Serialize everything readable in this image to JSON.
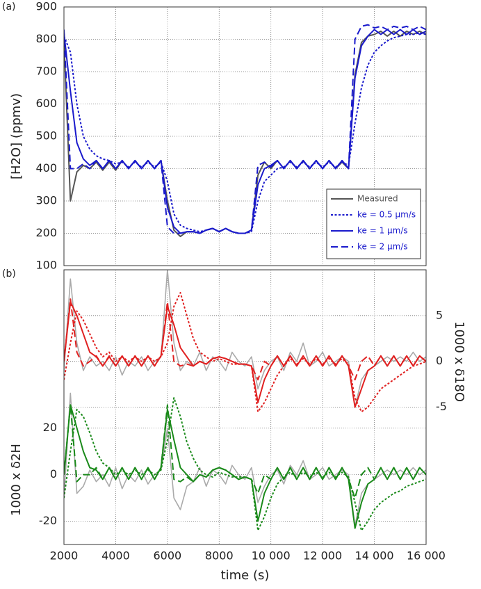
{
  "chart_data": [
    {
      "type": "line",
      "panel_label": "(a)",
      "y_label": "[H2O]  (ppmv)",
      "x": [
        2000,
        2250,
        2500,
        2750,
        3000,
        3250,
        3500,
        3750,
        4000,
        4250,
        4500,
        4750,
        5000,
        5250,
        5500,
        5750,
        6000,
        6250,
        6500,
        6750,
        7000,
        7250,
        7500,
        7750,
        8000,
        8250,
        8500,
        8750,
        9000,
        9250,
        9500,
        9750,
        10000,
        10250,
        10500,
        10750,
        11000,
        11250,
        11500,
        11750,
        12000,
        12250,
        12500,
        12750,
        13000,
        13250,
        13500,
        13750,
        14000,
        14250,
        14500,
        14750,
        15000,
        15250,
        15500,
        15750,
        16000
      ],
      "xlim": [
        2000,
        16000
      ],
      "xticks": [
        2000,
        4000,
        6000,
        8000,
        10000,
        12000,
        14000,
        16000
      ],
      "ylim": [
        100,
        900
      ],
      "yticks": [
        100,
        200,
        300,
        400,
        500,
        600,
        700,
        800,
        900
      ],
      "grid": true,
      "legend": "lower right",
      "series": [
        {
          "name": "Measured",
          "color": "#555555",
          "style": "solid",
          "values": [
            800,
            300,
            390,
            410,
            400,
            420,
            395,
            420,
            395,
            425,
            400,
            425,
            400,
            425,
            400,
            425,
            300,
            210,
            190,
            205,
            205,
            200,
            210,
            215,
            205,
            215,
            205,
            200,
            200,
            210,
            380,
            420,
            400,
            425,
            400,
            425,
            400,
            425,
            400,
            425,
            400,
            425,
            400,
            420,
            400,
            690,
            790,
            810,
            815,
            825,
            810,
            825,
            810,
            825,
            815,
            825,
            815
          ]
        },
        {
          "name": "ke = 0.5 µm/s",
          "color": "#1a1acc",
          "style": "dotted",
          "values": [
            810,
            760,
            600,
            500,
            460,
            440,
            430,
            425,
            415,
            420,
            405,
            420,
            405,
            420,
            405,
            420,
            360,
            260,
            225,
            215,
            210,
            205,
            210,
            215,
            205,
            215,
            205,
            200,
            200,
            205,
            300,
            360,
            380,
            400,
            405,
            420,
            405,
            420,
            405,
            420,
            405,
            420,
            405,
            420,
            410,
            540,
            650,
            720,
            760,
            780,
            795,
            805,
            810,
            815,
            815,
            820,
            815
          ]
        },
        {
          "name": "ke = 1 µm/s",
          "color": "#1a1acc",
          "style": "solid",
          "values": [
            820,
            640,
            480,
            430,
            410,
            425,
            400,
            425,
            400,
            425,
            400,
            425,
            400,
            425,
            400,
            425,
            280,
            220,
            200,
            205,
            205,
            200,
            210,
            215,
            205,
            215,
            205,
            200,
            200,
            210,
            350,
            400,
            410,
            425,
            400,
            425,
            400,
            425,
            400,
            425,
            400,
            425,
            400,
            425,
            400,
            680,
            780,
            810,
            830,
            815,
            830,
            815,
            830,
            815,
            830,
            815,
            825
          ]
        },
        {
          "name": "ke = 2 µm/s",
          "color": "#1a1acc",
          "style": "dashed",
          "values": [
            830,
            400,
            400,
            415,
            400,
            425,
            400,
            425,
            400,
            425,
            400,
            425,
            400,
            425,
            400,
            425,
            220,
            200,
            200,
            205,
            205,
            200,
            210,
            215,
            205,
            215,
            205,
            200,
            200,
            210,
            410,
            420,
            405,
            425,
            400,
            425,
            400,
            425,
            400,
            425,
            400,
            425,
            400,
            425,
            400,
            800,
            840,
            845,
            835,
            840,
            830,
            840,
            835,
            840,
            830,
            840,
            830
          ]
        }
      ]
    },
    {
      "type": "line",
      "panel_label": "(b)",
      "x_label": "time (s)",
      "y_label": "1000 x δ2H",
      "y2_label": "1000 x δ18O",
      "x": [
        2000,
        2250,
        2500,
        2750,
        3000,
        3250,
        3500,
        3750,
        4000,
        4250,
        4500,
        4750,
        5000,
        5250,
        5500,
        5750,
        6000,
        6250,
        6500,
        6750,
        7000,
        7250,
        7500,
        7750,
        8000,
        8250,
        8500,
        8750,
        9000,
        9250,
        9500,
        9750,
        10000,
        10250,
        10500,
        10750,
        11000,
        11250,
        11500,
        11750,
        12000,
        12250,
        12500,
        12750,
        13000,
        13250,
        13500,
        13750,
        14000,
        14250,
        14500,
        14750,
        15000,
        15250,
        15500,
        15750,
        16000
      ],
      "xlim": [
        2000,
        16000
      ],
      "xticks": [
        2000,
        4000,
        6000,
        8000,
        {
          "value": 10000,
          "label": "10 000"
        },
        {
          "value": 12000,
          "label": "12 000"
        },
        {
          "value": 14000,
          "label": "14 000"
        },
        {
          "value": 16000,
          "label": "16 000"
        }
      ],
      "ylim": [
        -30,
        88
      ],
      "yticks": [
        -20,
        0,
        20
      ],
      "y2lim": [
        -20,
        10
      ],
      "y2ticks": [
        -5,
        0,
        5
      ],
      "grid": true,
      "series": [
        {
          "color": "#aaaaaa",
          "style": "solid",
          "axis": "y2",
          "values": [
            -1,
            9,
            2,
            -1,
            0.5,
            -0.5,
            0,
            -1,
            0.5,
            -1.5,
            0,
            -0.5,
            0.5,
            -1,
            0,
            0.5,
            10,
            2,
            -1,
            0,
            -0.5,
            1,
            -1,
            0.5,
            0,
            -1,
            1,
            0,
            -0.5,
            0.5,
            -3,
            -1,
            0,
            0.5,
            -1,
            1,
            0,
            2,
            -0.5,
            0,
            1,
            -0.5,
            0,
            0.5,
            0,
            -5,
            -2,
            -1,
            -0.5,
            0,
            0.5,
            0,
            0.5,
            0,
            1,
            0,
            0.5
          ]
        },
        {
          "color": "#aaaaaa",
          "style": "solid",
          "values": [
            -10,
            35,
            -8,
            -5,
            2,
            -3,
            0,
            -5,
            3,
            -6,
            0,
            -3,
            2,
            -4,
            0,
            2,
            20,
            -10,
            -15,
            -5,
            -3,
            3,
            -5,
            2,
            0,
            -4,
            4,
            0,
            -2,
            3,
            -12,
            -5,
            0,
            2,
            -4,
            4,
            0,
            6,
            -2,
            0,
            3,
            -2,
            0,
            2,
            0,
            -22,
            -8,
            -4,
            -2,
            0,
            2,
            0,
            2,
            0,
            3,
            0,
            2
          ]
        },
        {
          "color": "#e02020",
          "style": "dotted",
          "axis": "y2",
          "values": [
            -2,
            2,
            5.5,
            4.5,
            3,
            1.5,
            0.5,
            1,
            0,
            0.5,
            0,
            0.5,
            0,
            0.5,
            0,
            0.5,
            2,
            6,
            7.5,
            5,
            2.5,
            1,
            0.5,
            0,
            0.3,
            0,
            -0.3,
            -0.3,
            -0.3,
            -0.5,
            -5.5,
            -4.5,
            -3,
            -1.5,
            -0.5,
            0.3,
            -0.3,
            0.3,
            -0.3,
            0.3,
            -0.3,
            0.3,
            -0.3,
            0.3,
            -0.3,
            -4,
            -5.5,
            -5,
            -4,
            -3,
            -2.5,
            -2,
            -1.5,
            -1,
            -0.5,
            -0.3,
            0
          ]
        },
        {
          "color": "#e02020",
          "style": "solid",
          "axis": "y2",
          "values": [
            0,
            6.5,
            5,
            3,
            1,
            0.5,
            -0.5,
            0.5,
            -0.5,
            0.6,
            -0.5,
            0.6,
            -0.5,
            0.6,
            -0.5,
            0.6,
            6,
            4,
            1.5,
            0.5,
            -0.5,
            0,
            -0.3,
            0.3,
            0.5,
            0.3,
            0,
            -0.3,
            -0.3,
            -0.5,
            -4.5,
            -2,
            -0.5,
            0.6,
            -0.5,
            0.6,
            -0.5,
            0.6,
            -0.5,
            0.6,
            -0.5,
            0.6,
            -0.5,
            0.6,
            -0.5,
            -5,
            -3,
            -1,
            -0.5,
            0.6,
            -0.5,
            0.6,
            -0.5,
            0.6,
            -0.5,
            0.6,
            0
          ]
        },
        {
          "color": "#e02020",
          "style": "dashed",
          "axis": "y2",
          "values": [
            0,
            6.8,
            1,
            -0.5,
            0,
            0.6,
            -0.5,
            0.6,
            -0.5,
            0.6,
            -0.5,
            0.6,
            -0.5,
            0.6,
            -0.5,
            0.6,
            6.5,
            0,
            -0.5,
            -0.3,
            -0.5,
            0,
            -0.3,
            0.3,
            0.5,
            0.3,
            0,
            -0.3,
            -0.3,
            -0.5,
            -2,
            0,
            -0.5,
            0.6,
            -0.5,
            0.6,
            -0.5,
            0.6,
            -0.5,
            0.6,
            -0.5,
            0.6,
            -0.5,
            0.6,
            -0.5,
            -2,
            0,
            0.6,
            -0.5,
            0.6,
            -0.5,
            0.6,
            -0.5,
            0.6,
            -0.5,
            0.6,
            0
          ]
        },
        {
          "color": "#1a8a1a",
          "style": "dotted",
          "values": [
            -10,
            10,
            28,
            25,
            18,
            10,
            5,
            3,
            0,
            2,
            0,
            2,
            0,
            2,
            0,
            2,
            15,
            33,
            25,
            14,
            7,
            2,
            0,
            -1,
            1,
            0,
            -1,
            -1,
            -1,
            -2,
            -24,
            -18,
            -10,
            -4,
            -1,
            1,
            -1,
            1,
            -1,
            1,
            -1,
            1,
            -1,
            1,
            -1,
            -12,
            -24,
            -20,
            -15,
            -12,
            -10,
            -8,
            -7,
            -5,
            -4,
            -3,
            -2
          ]
        },
        {
          "color": "#1a8a1a",
          "style": "solid",
          "values": [
            0,
            30,
            20,
            10,
            3,
            2,
            -2,
            3,
            -2,
            3,
            -2,
            3,
            -2,
            3,
            -2,
            3,
            28,
            15,
            3,
            0,
            -3,
            0,
            -1,
            2,
            3,
            2,
            0,
            -2,
            -1,
            -2,
            -20,
            -8,
            -2,
            3,
            -2,
            3,
            -2,
            3,
            -2,
            3,
            -2,
            3,
            -2,
            3,
            -2,
            -23,
            -12,
            -4,
            -2,
            3,
            -2,
            3,
            -2,
            3,
            -2,
            3,
            0
          ]
        },
        {
          "color": "#1a8a1a",
          "style": "dashed",
          "values": [
            0,
            30,
            -3,
            0,
            0,
            3,
            -2,
            3,
            -2,
            3,
            -2,
            3,
            -2,
            3,
            -2,
            3,
            30,
            -2,
            -3,
            -1,
            -3,
            0,
            -1,
            2,
            3,
            2,
            0,
            -2,
            -1,
            -2,
            -8,
            0,
            -2,
            3,
            -2,
            3,
            -2,
            3,
            -2,
            3,
            -2,
            3,
            -2,
            3,
            -2,
            -10,
            0,
            3,
            -2,
            3,
            -2,
            3,
            -2,
            3,
            -2,
            3,
            0
          ]
        }
      ]
    }
  ]
}
